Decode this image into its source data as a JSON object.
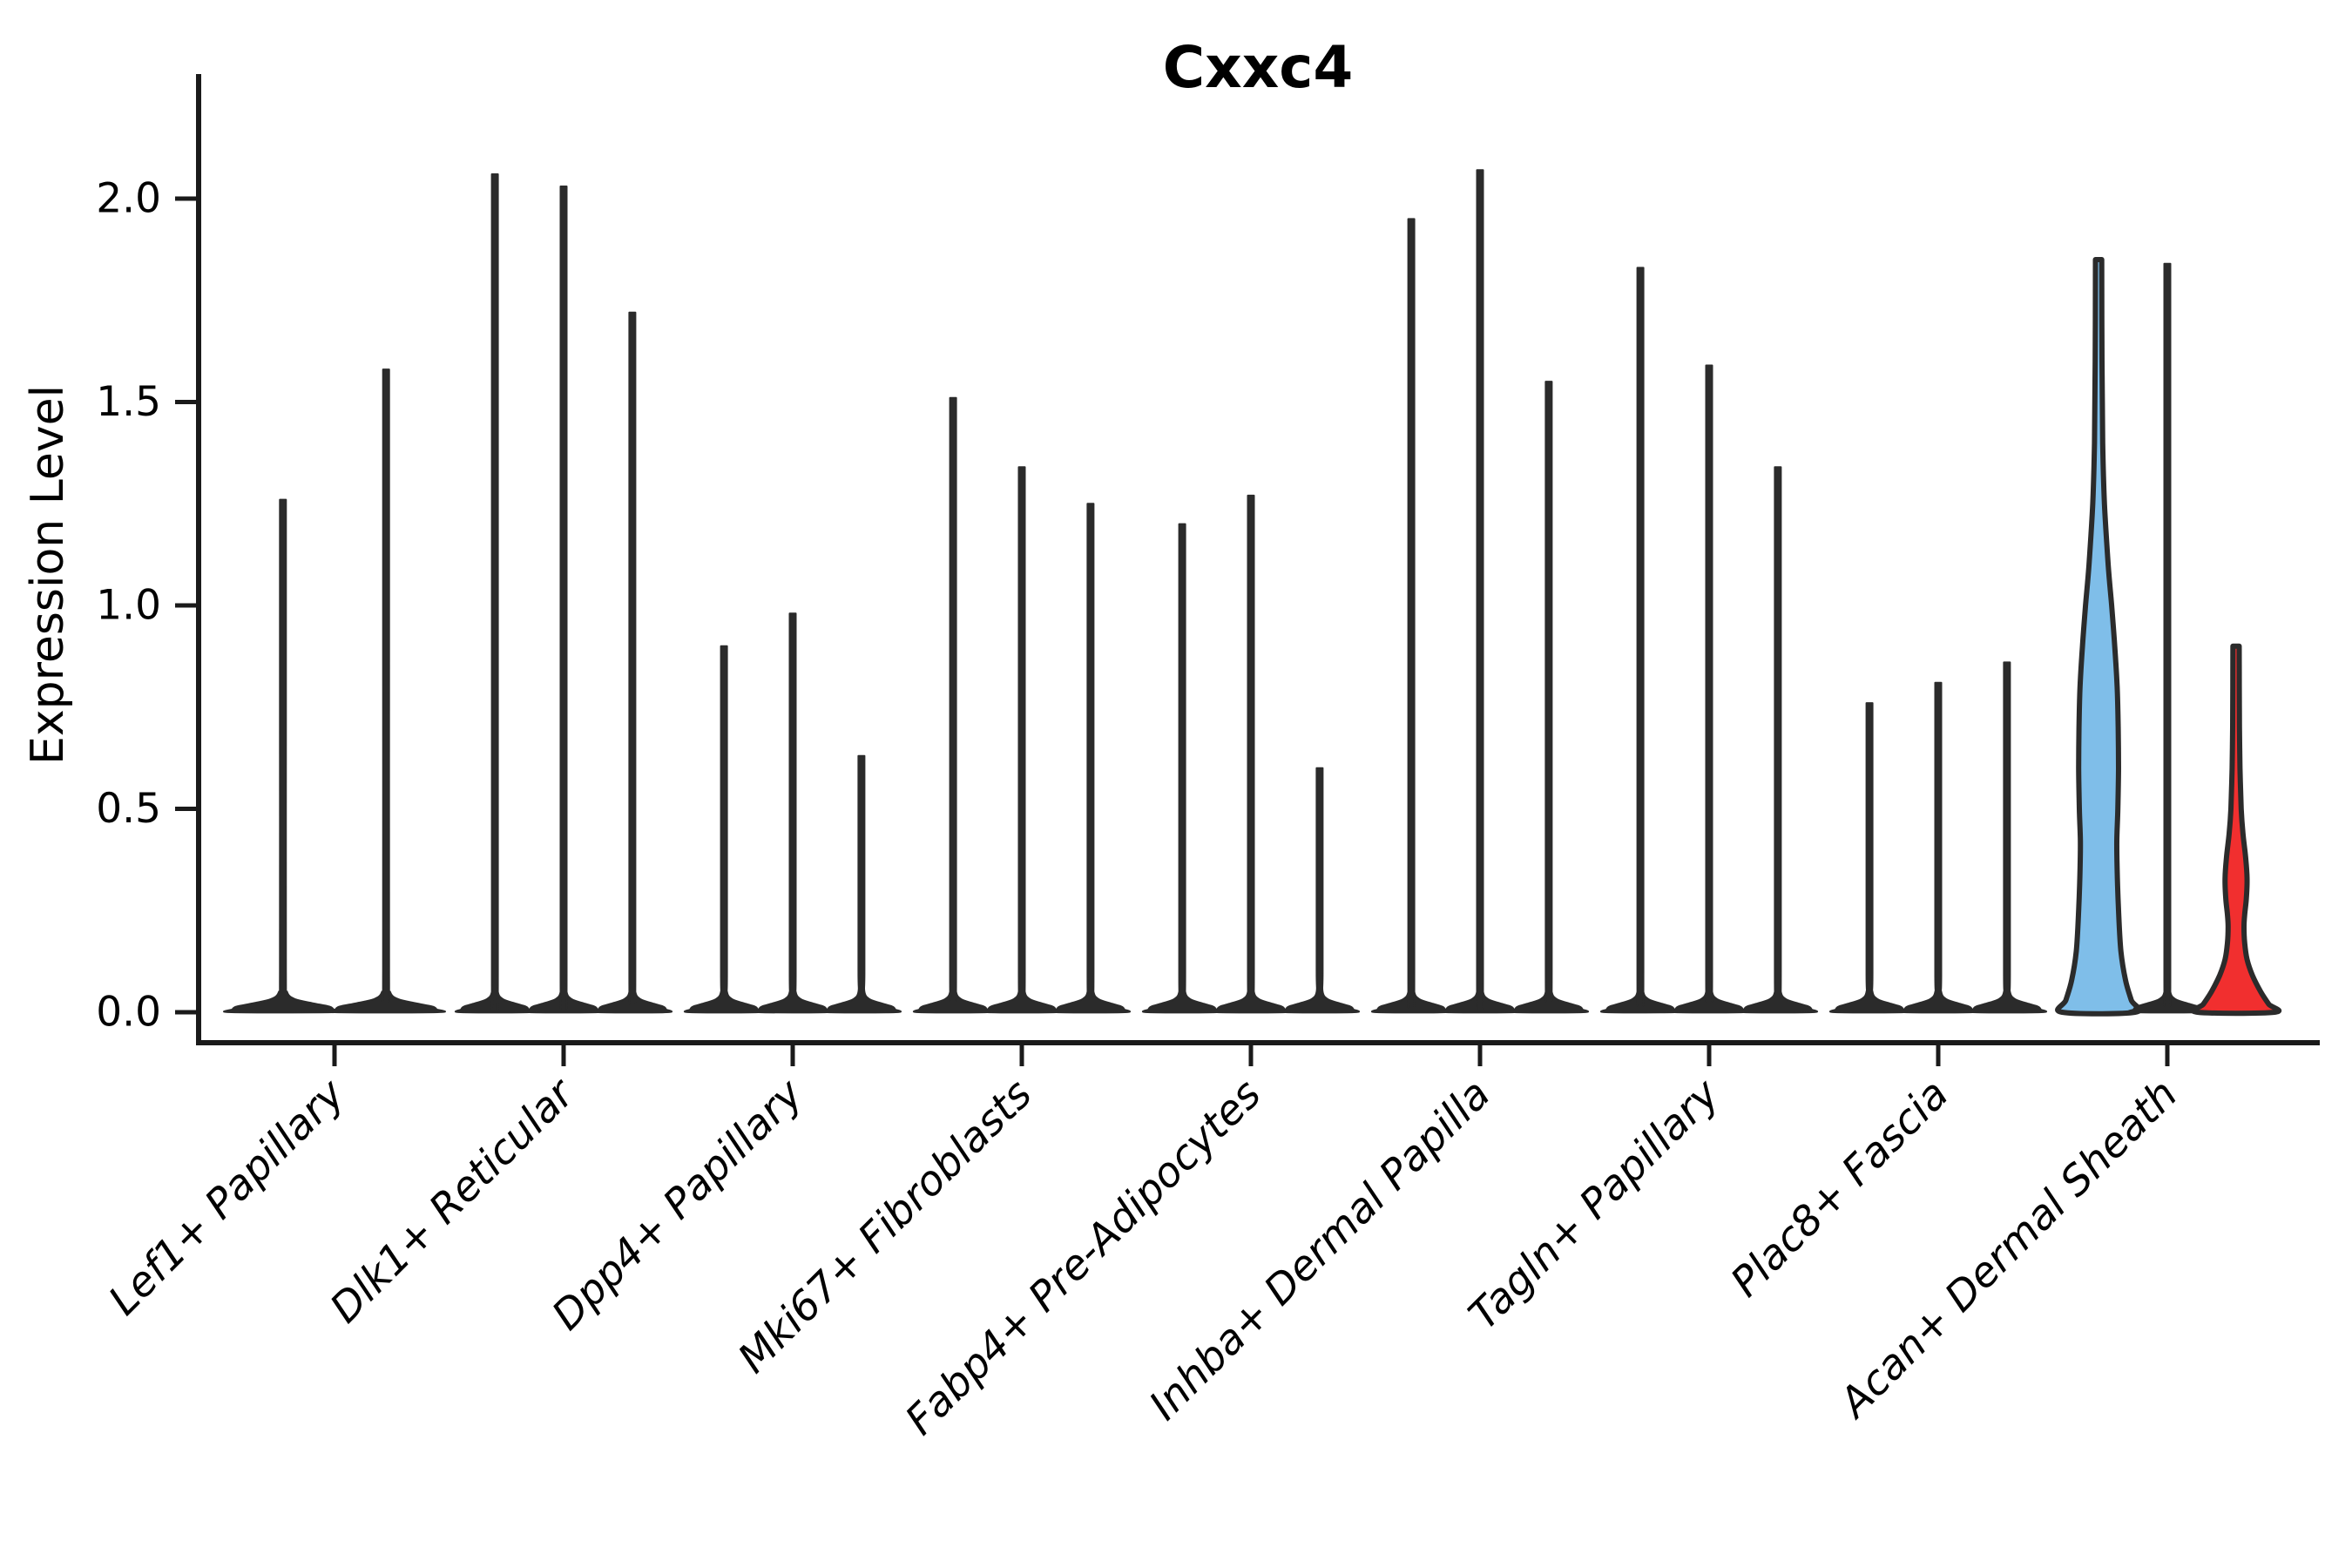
{
  "title": "Cxxc4",
  "y_axis": {
    "label": "Expression Level",
    "ticks": [
      {
        "label": "0.0",
        "value": 0.0
      },
      {
        "label": "0.5",
        "value": 0.5
      },
      {
        "label": "1.0",
        "value": 1.0
      },
      {
        "label": "1.5",
        "value": 1.5
      },
      {
        "label": "2.0",
        "value": 2.0
      }
    ]
  },
  "chart_data": {
    "type": "violin",
    "title": "Cxxc4",
    "xlabel": "",
    "ylabel": "Expression Level",
    "ylim": [
      -0.1,
      2.25
    ],
    "grid": false,
    "legend": "none",
    "categories": [
      "Lef1+ Papillary",
      "Dlk1+ Reticular",
      "Dpp4+ Papillary",
      "Mki67+ Fibroblasts",
      "Fabp4+ Pre-Adipocytes",
      "Inhba+ Dermal Papilla",
      "Tagln+ Papillary",
      "Plac8+ Fascia",
      "Acan+ Dermal Sheath"
    ],
    "colors": {
      "outline": "#2b2b2b",
      "axis": "#1a1a1a",
      "highlight_blue": "#7fbee9",
      "highlight_red": "#f12f2f"
    },
    "groups": [
      {
        "category": "Lef1+ Papillary",
        "violins": [
          {
            "max": 1.26,
            "color": "black"
          },
          {
            "max": 1.58,
            "color": "black"
          }
        ]
      },
      {
        "category": "Dlk1+ Reticular",
        "violins": [
          {
            "max": 2.06,
            "color": "black"
          },
          {
            "max": 2.03,
            "color": "black"
          },
          {
            "max": 1.72,
            "color": "black"
          }
        ]
      },
      {
        "category": "Dpp4+ Papillary",
        "violins": [
          {
            "max": 0.9,
            "color": "black"
          },
          {
            "max": 0.98,
            "color": "black"
          },
          {
            "max": 0.63,
            "color": "black"
          }
        ]
      },
      {
        "category": "Mki67+ Fibroblasts",
        "violins": [
          {
            "max": 1.51,
            "color": "black"
          },
          {
            "max": 1.34,
            "color": "black"
          },
          {
            "max": 1.25,
            "color": "black"
          }
        ]
      },
      {
        "category": "Fabp4+ Pre-Adipocytes",
        "violins": [
          {
            "max": 1.2,
            "color": "black"
          },
          {
            "max": 1.27,
            "color": "black"
          },
          {
            "max": 0.6,
            "color": "black"
          }
        ]
      },
      {
        "category": "Inhba+ Dermal Papilla",
        "violins": [
          {
            "max": 1.95,
            "color": "black"
          },
          {
            "max": 2.07,
            "color": "black"
          },
          {
            "max": 1.55,
            "color": "black"
          }
        ]
      },
      {
        "category": "Tagln+ Papillary",
        "violins": [
          {
            "max": 1.83,
            "color": "black"
          },
          {
            "max": 1.59,
            "color": "black"
          },
          {
            "max": 1.34,
            "color": "black"
          }
        ]
      },
      {
        "category": "Plac8+ Fascia",
        "violins": [
          {
            "max": 0.76,
            "color": "black"
          },
          {
            "max": 0.81,
            "color": "black"
          },
          {
            "max": 0.86,
            "color": "black"
          }
        ]
      },
      {
        "category": "Acan+ Dermal Sheath",
        "violins": [
          {
            "max": 1.85,
            "color": "#7fbee9",
            "profile": [
              [
                1.85,
                0.09
              ],
              [
                1.6,
                0.1
              ],
              [
                1.4,
                0.12
              ],
              [
                1.25,
                0.17
              ],
              [
                1.1,
                0.28
              ],
              [
                1.0,
                0.38
              ],
              [
                0.9,
                0.47
              ],
              [
                0.8,
                0.54
              ],
              [
                0.7,
                0.57
              ],
              [
                0.6,
                0.58
              ],
              [
                0.5,
                0.56
              ],
              [
                0.42,
                0.53
              ],
              [
                0.35,
                0.54
              ],
              [
                0.25,
                0.58
              ],
              [
                0.15,
                0.65
              ],
              [
                0.08,
                0.78
              ],
              [
                0.03,
                0.95
              ],
              [
                0.0,
                1.06
              ]
            ]
          },
          {
            "max": 1.84,
            "color": "black"
          },
          {
            "max": 0.9,
            "color": "#f12f2f",
            "profile": [
              [
                0.9,
                0.09
              ],
              [
                0.8,
                0.095
              ],
              [
                0.7,
                0.1
              ],
              [
                0.6,
                0.115
              ],
              [
                0.5,
                0.15
              ],
              [
                0.44,
                0.2
              ],
              [
                0.38,
                0.28
              ],
              [
                0.33,
                0.32
              ],
              [
                0.28,
                0.3
              ],
              [
                0.24,
                0.25
              ],
              [
                0.21,
                0.23
              ],
              [
                0.17,
                0.25
              ],
              [
                0.13,
                0.32
              ],
              [
                0.09,
                0.48
              ],
              [
                0.05,
                0.72
              ],
              [
                0.02,
                0.95
              ],
              [
                0.0,
                1.12
              ]
            ]
          }
        ]
      }
    ]
  }
}
